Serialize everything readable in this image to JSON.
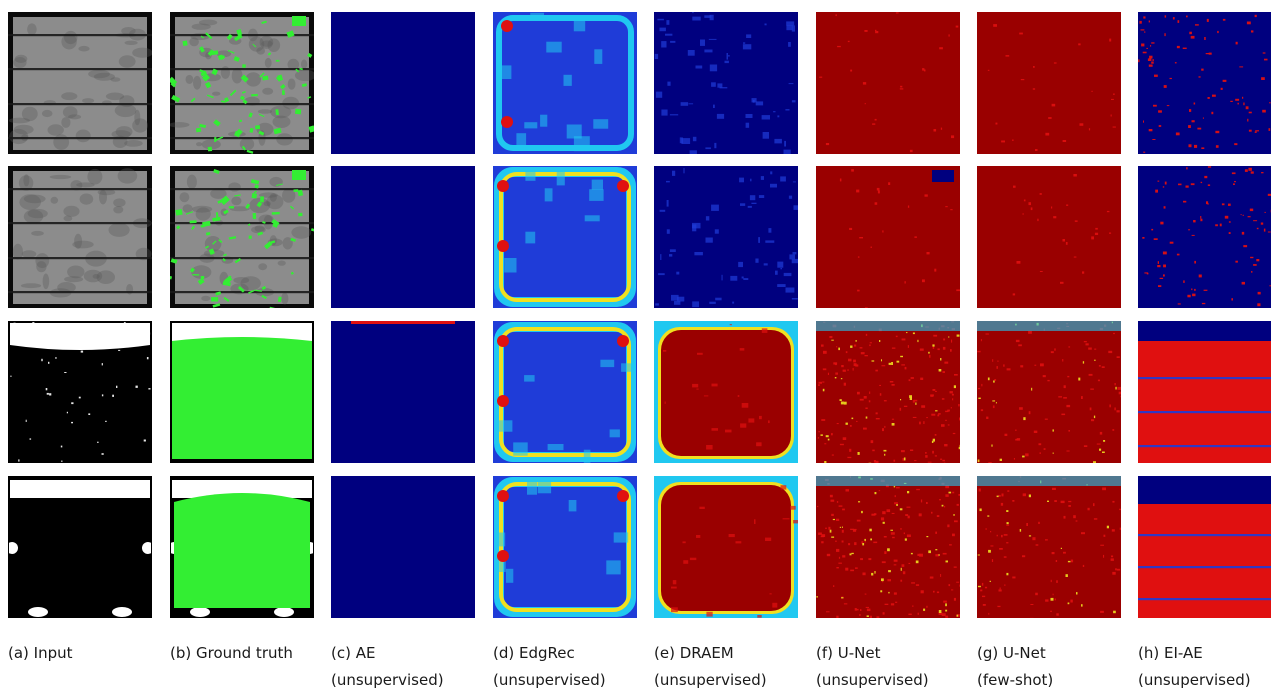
{
  "figure": {
    "columns": [
      {
        "id": "input",
        "caption_line1": "(a) Input",
        "caption_line2": ""
      },
      {
        "id": "ground-truth",
        "caption_line1": "(b) Ground truth",
        "caption_line2": ""
      },
      {
        "id": "ae",
        "caption_line1": "(c) AE",
        "caption_line2": "(unsupervised)"
      },
      {
        "id": "edgrec",
        "caption_line1": "(d) EdgRec",
        "caption_line2": "(unsupervised)"
      },
      {
        "id": "draem",
        "caption_line1": "(e) DRAEM",
        "caption_line2": "(unsupervised)"
      },
      {
        "id": "unet-unsup",
        "caption_line1": "(f) U-Net",
        "caption_line2": "(unsupervised)"
      },
      {
        "id": "unet-fewshot",
        "caption_line1": "(g) U-Net",
        "caption_line2": "(few-shot)"
      },
      {
        "id": "ei-ae",
        "caption_line1": "(h) EI-AE",
        "caption_line2": "(unsupervised)"
      }
    ],
    "rows": [
      "row-1",
      "row-2",
      "row-3",
      "row-4"
    ],
    "colors": {
      "jet_low": "#00007f",
      "jet_mid_blue": "#1f3cd8",
      "jet_cyan": "#20c8f0",
      "jet_yellow": "#f0e020",
      "jet_high": "#9a0000",
      "jet_red": "#e01010",
      "ground_truth_mask": "#33ee33",
      "cell_gray": "#8c8c8c",
      "background": "#ffffff"
    }
  }
}
